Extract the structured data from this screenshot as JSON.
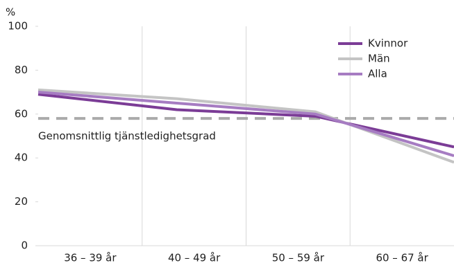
{
  "chart_data": {
    "type": "line",
    "y_label": "%",
    "categories": [
      "36 – 39 år",
      "40 – 49 år",
      "50 – 59 år",
      "60 – 67 år"
    ],
    "series": [
      {
        "name": "Kvinnor",
        "color": "#7b3c96",
        "values": [
          69,
          62,
          59,
          45
        ]
      },
      {
        "name": "Män",
        "color": "#c4c4c4",
        "values": [
          71,
          67,
          61,
          38
        ]
      },
      {
        "name": "Alla",
        "color": "#a67cc2",
        "values": [
          70,
          65,
          60,
          41
        ]
      }
    ],
    "reference": {
      "value": 58,
      "label": "Genomsnittlig tjänstledighetsgrad",
      "color": "#aaaaaa"
    },
    "ylim": [
      0,
      100
    ],
    "yticks": [
      0,
      20,
      40,
      60,
      80,
      100
    ],
    "legend": "top-right"
  }
}
